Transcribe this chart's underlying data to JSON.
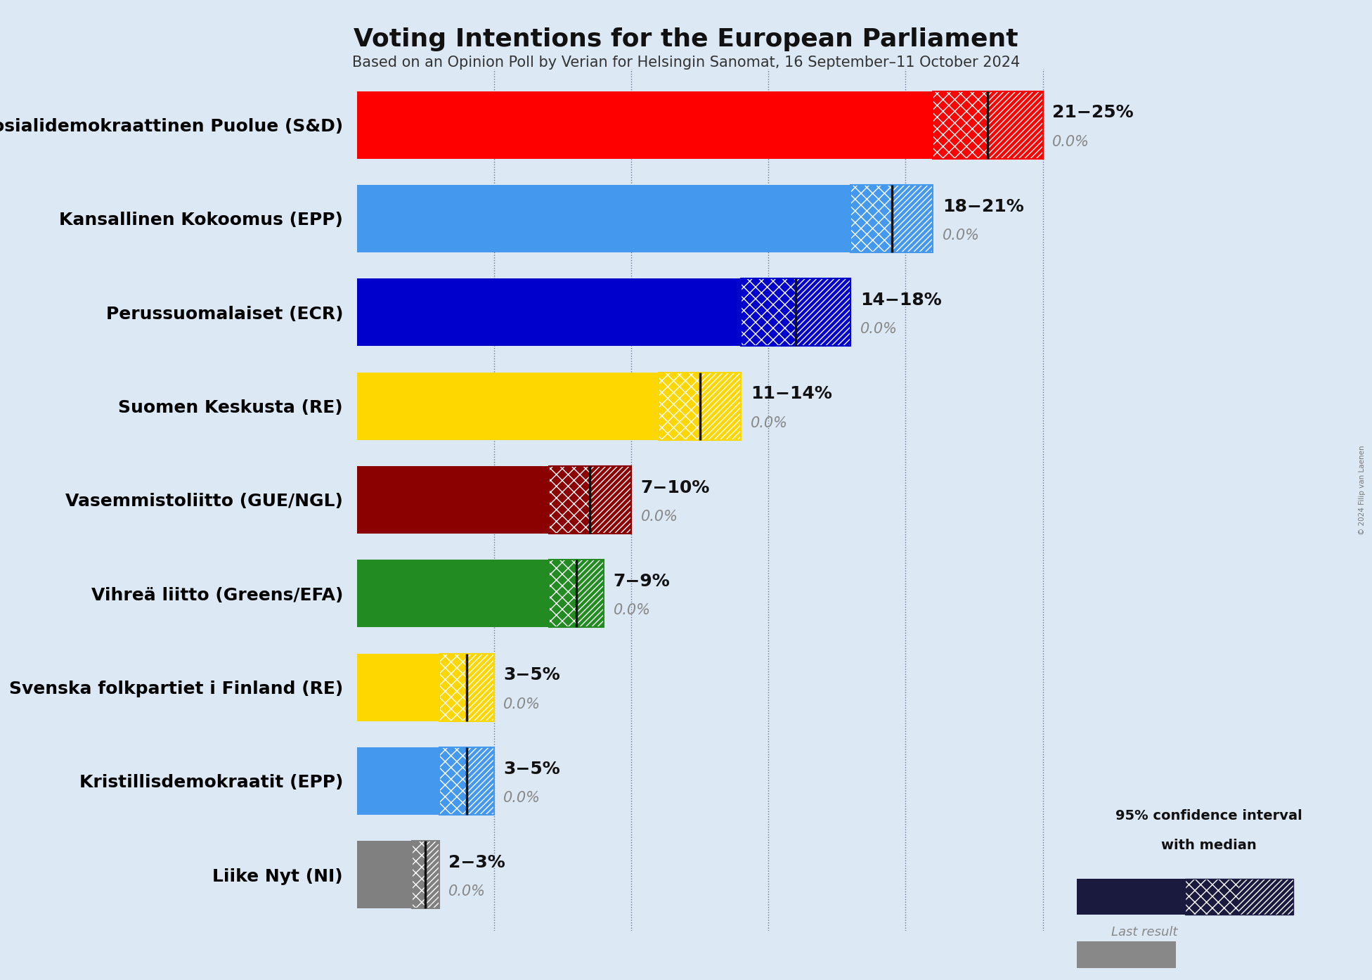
{
  "title": "Voting Intentions for the European Parliament",
  "subtitle": "Based on an Opinion Poll by Verian for Helsingin Sanomat, 16 September–11 October 2024",
  "copyright": "© 2024 Filip van Laenen",
  "background_color": "#dce9f5",
  "parties": [
    {
      "name": "Suomen Sosialidemokraattinen Puolue (S&D)",
      "ci_low": 21,
      "ci_high": 25,
      "median": 23,
      "last_result": 0.0,
      "color": "#FF0000",
      "label": "21−25%"
    },
    {
      "name": "Kansallinen Kokoomus (EPP)",
      "ci_low": 18,
      "ci_high": 21,
      "median": 19.5,
      "last_result": 0.0,
      "color": "#4499EE",
      "label": "18−21%"
    },
    {
      "name": "Perussuomalaiset (ECR)",
      "ci_low": 14,
      "ci_high": 18,
      "median": 16,
      "last_result": 0.0,
      "color": "#0000CC",
      "label": "14−18%"
    },
    {
      "name": "Suomen Keskusta (RE)",
      "ci_low": 11,
      "ci_high": 14,
      "median": 12.5,
      "last_result": 0.0,
      "color": "#FFD700",
      "label": "11−14%"
    },
    {
      "name": "Vasemmistoliitto (GUE/NGL)",
      "ci_low": 7,
      "ci_high": 10,
      "median": 8.5,
      "last_result": 0.0,
      "color": "#8B0000",
      "label": "7−10%"
    },
    {
      "name": "Vihreä liitto (Greens/EFA)",
      "ci_low": 7,
      "ci_high": 9,
      "median": 8,
      "last_result": 0.0,
      "color": "#228B22",
      "label": "7−9%"
    },
    {
      "name": "Svenska folkpartiet i Finland (RE)",
      "ci_low": 3,
      "ci_high": 5,
      "median": 4,
      "last_result": 0.0,
      "color": "#FFD700",
      "label": "3−5%"
    },
    {
      "name": "Kristillisdemokraatit (EPP)",
      "ci_low": 3,
      "ci_high": 5,
      "median": 4,
      "last_result": 0.0,
      "color": "#4499EE",
      "label": "3−5%"
    },
    {
      "name": "Liike Nyt (NI)",
      "ci_low": 2,
      "ci_high": 3,
      "median": 2.5,
      "last_result": 0.0,
      "color": "#808080",
      "label": "2−3%"
    }
  ],
  "xlim": [
    0,
    27
  ],
  "grid_lines": [
    5,
    10,
    15,
    20,
    25
  ],
  "bar_height": 0.72,
  "label_fontsize": 18,
  "label_fontsize_pct": 15,
  "title_fontsize": 26,
  "subtitle_fontsize": 15,
  "name_fontsize": 18,
  "legend_text_line1": "95% confidence interval",
  "legend_text_line2": "with median",
  "legend_text_line3": "Last result",
  "legend_dark_color": "#1a1a3e",
  "legend_gray_color": "#888888"
}
